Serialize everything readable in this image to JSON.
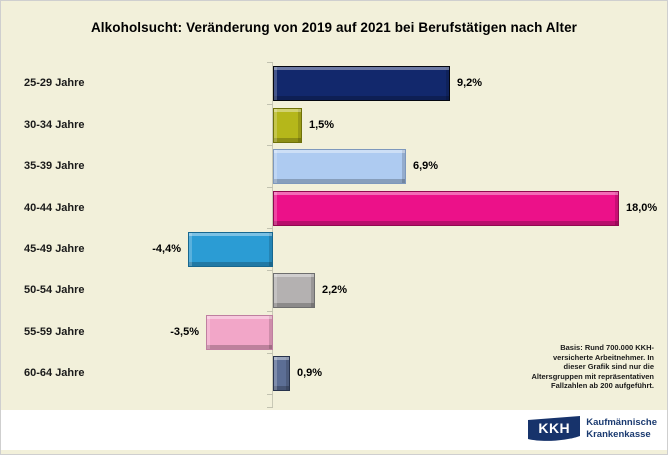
{
  "page": {
    "background_color": "#F2F0DA",
    "footer_background_color": "#FFFFFF"
  },
  "chart_data": {
    "type": "bar",
    "orientation": "horizontal",
    "title": "Alkoholsucht: Veränderung von 2019 auf 2021 bei Berufstätigen nach Alter",
    "categories": [
      "25-29 Jahre",
      "30-34 Jahre",
      "35-39 Jahre",
      "40-44 Jahre",
      "45-49 Jahre",
      "50-54 Jahre",
      "55-59 Jahre",
      "60-64 Jahre"
    ],
    "values": [
      9.2,
      1.5,
      6.9,
      18.0,
      -4.4,
      2.2,
      -3.5,
      0.9
    ],
    "value_labels": [
      "9,2%",
      "1,5%",
      "6,9%",
      "18,0%",
      "-4,4%",
      "2,2%",
      "-3,5%",
      "0,9%"
    ],
    "bar_colors": [
      {
        "fill": "#12286C",
        "edge": "#05070F"
      },
      {
        "fill": "#B5B71A",
        "edge": "#6F7108"
      },
      {
        "fill": "#AECBF1",
        "edge": "#7E98BC"
      },
      {
        "fill": "#EC1189",
        "edge": "#90094F"
      },
      {
        "fill": "#2B9CD4",
        "edge": "#17678F"
      },
      {
        "fill": "#B4B1B1",
        "edge": "#6E6E6E"
      },
      {
        "fill": "#F2A6C8",
        "edge": "#BF7FA0"
      },
      {
        "fill": "#5C6E95",
        "edge": "#28334C"
      }
    ],
    "xlim": [
      -6,
      20
    ],
    "unit": "%",
    "grid": false,
    "legend": false,
    "axis_color": "#C9C9B6"
  },
  "note": {
    "text": "Basis: Rund 700.000 KKH-\nversicherte Arbeitnehmer. In\ndieser Grafik sind nur die\nAltersgruppen mit repräsentativen\nFallzahlen ab 200 aufgeführt."
  },
  "footer": {
    "logo_text": "KKH",
    "org_line1": "Kaufmännische",
    "org_line2": "Krankenkasse",
    "logo_color": "#17336B"
  }
}
